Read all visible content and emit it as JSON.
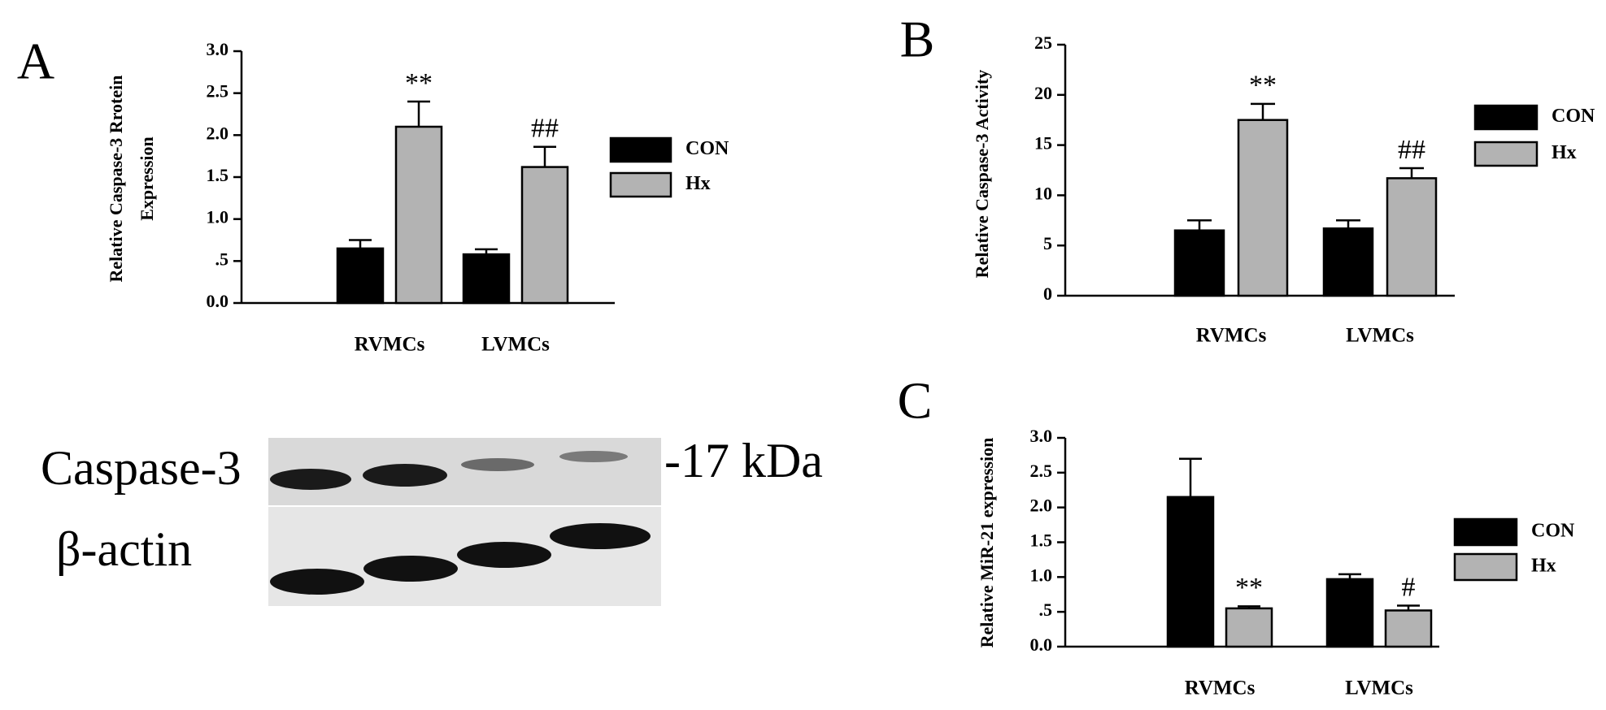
{
  "chart_data": [
    {
      "type": "bar",
      "panel_label": "A",
      "ylabel": [
        "Relative Caspase-3 Rrotein",
        "Expression"
      ],
      "categories": [
        "RVMCs",
        "LVMCs"
      ],
      "series": [
        {
          "name": "CON",
          "color": "#000000",
          "values": [
            0.65,
            0.58
          ],
          "errors": [
            0.1,
            0.06
          ]
        },
        {
          "name": "Hx",
          "color": "#b3b3b3",
          "values": [
            2.1,
            1.62
          ],
          "errors": [
            0.3,
            0.24
          ]
        }
      ],
      "annotations": [
        {
          "series": 1,
          "category": 0,
          "text": "**"
        },
        {
          "series": 1,
          "category": 1,
          "text": "##"
        }
      ],
      "ylim": [
        0,
        3
      ],
      "yticks": [
        {
          "value": 0,
          "label": "0.0"
        },
        {
          "value": 0.5,
          "label": ".5"
        },
        {
          "value": 1,
          "label": "1.0"
        },
        1.5,
        {
          "value": 2,
          "label": "2.0"
        },
        2.5,
        {
          "value": 3,
          "label": "3.0"
        }
      ]
    },
    {
      "type": "bar",
      "panel_label": "B",
      "ylabel": [
        "Relative Caspase-3 Activity"
      ],
      "categories": [
        "RVMCs",
        "LVMCs"
      ],
      "series": [
        {
          "name": "CON",
          "color": "#000000",
          "values": [
            6.5,
            6.7
          ],
          "errors": [
            1.0,
            0.8
          ]
        },
        {
          "name": "Hx",
          "color": "#b3b3b3",
          "values": [
            17.5,
            11.7
          ],
          "errors": [
            1.6,
            1.0
          ]
        }
      ],
      "annotations": [
        {
          "series": 1,
          "category": 0,
          "text": "**"
        },
        {
          "series": 1,
          "category": 1,
          "text": "##"
        }
      ],
      "ylim": [
        0,
        25
      ],
      "yticks": [
        0,
        5,
        10,
        15,
        20,
        25
      ]
    },
    {
      "type": "bar",
      "panel_label": "C",
      "ylabel": [
        "Relative MiR-21 expression"
      ],
      "categories": [
        "RVMCs",
        "LVMCs"
      ],
      "series": [
        {
          "name": "CON",
          "color": "#000000",
          "values": [
            2.15,
            0.97
          ],
          "errors": [
            0.55,
            0.07
          ]
        },
        {
          "name": "Hx",
          "color": "#b3b3b3",
          "values": [
            0.55,
            0.52
          ],
          "errors": [
            0.03,
            0.07
          ]
        }
      ],
      "annotations": [
        {
          "series": 1,
          "category": 0,
          "text": "**"
        },
        {
          "series": 1,
          "category": 1,
          "text": "#"
        }
      ],
      "ylim": [
        0,
        3
      ],
      "yticks": [
        {
          "value": 0,
          "label": "0.0"
        },
        {
          "value": 0.5,
          "label": ".5"
        },
        {
          "value": 1,
          "label": "1.0"
        },
        1.5,
        {
          "value": 2,
          "label": "2.0"
        },
        2.5,
        {
          "value": 3,
          "label": "3.0"
        }
      ]
    }
  ],
  "blot": {
    "rows": [
      "Caspase-3",
      "β-actin"
    ],
    "marker": "-17 kDa"
  }
}
